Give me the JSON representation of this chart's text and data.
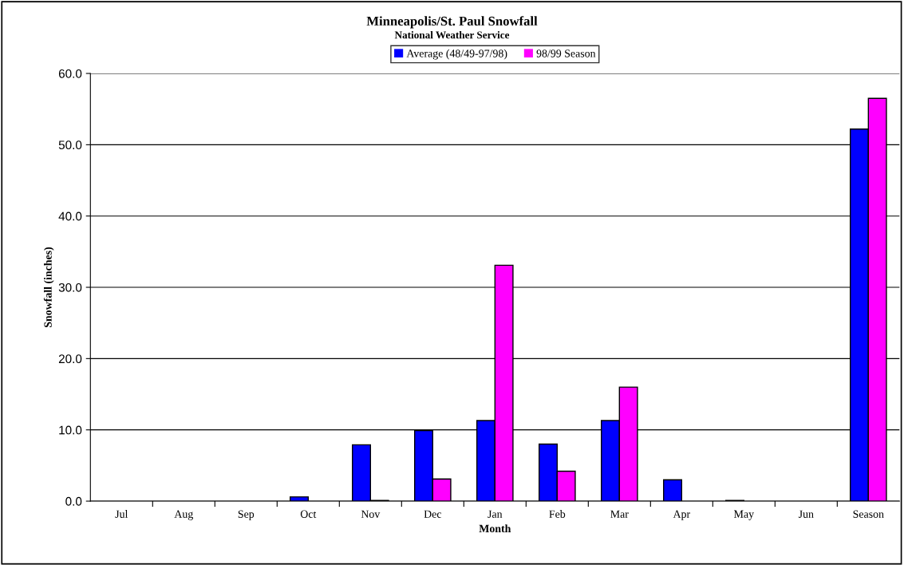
{
  "chart_data": {
    "type": "bar",
    "title": "Minneapolis/St. Paul Snowfall",
    "subtitle": "National Weather Service",
    "xlabel": "Month",
    "ylabel": "Snowfall (inches)",
    "categories": [
      "Jul",
      "Aug",
      "Sep",
      "Oct",
      "Nov",
      "Dec",
      "Jan",
      "Feb",
      "Mar",
      "Apr",
      "May",
      "Jun",
      "Season"
    ],
    "series": [
      {
        "name": "Average (48/49-97/98)",
        "color": "#0000ff",
        "values": [
          0,
          0,
          0,
          0.6,
          7.9,
          9.9,
          11.3,
          8.0,
          11.3,
          3.0,
          0.1,
          0,
          52.2
        ]
      },
      {
        "name": "98/99 Season",
        "color": "#ff00ff",
        "values": [
          0,
          0,
          0,
          0,
          0.1,
          3.1,
          33.1,
          4.2,
          16.0,
          0,
          0,
          0,
          56.5
        ]
      }
    ],
    "ylim": [
      0,
      60
    ],
    "yticks": [
      {
        "value": 0,
        "label": "0.0"
      },
      {
        "value": 10,
        "label": "10.0"
      },
      {
        "value": 20,
        "label": "20.0"
      },
      {
        "value": 30,
        "label": "30.0"
      },
      {
        "value": 40,
        "label": "40.0"
      },
      {
        "value": 50,
        "label": "50.0"
      },
      {
        "value": 60,
        "label": "60.0"
      }
    ],
    "grid": "y",
    "legend": "top"
  }
}
